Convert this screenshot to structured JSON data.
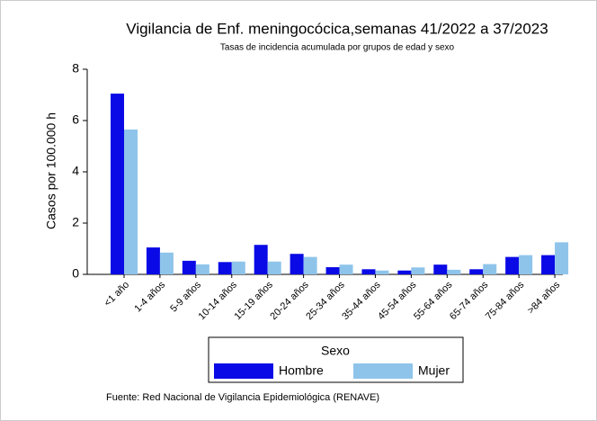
{
  "chart_data": {
    "type": "bar",
    "title": "Vigilancia de Enf. meningocócica,semanas 41/2022 a 37/2023",
    "subtitle": "Tasas de incidencia acumulada por grupos de edad y sexo",
    "y_label": "Casos por 100.000 h",
    "categories": [
      "<1 año",
      "1-4 años",
      "5-9 años",
      "10-14 años",
      "15-19 años",
      "20-24 años",
      "25-34 años",
      "35-44 años",
      "45-54 años",
      "55-64 años",
      "65-74 años",
      "75-84 años",
      ">84 años"
    ],
    "series": [
      {
        "name": "Hombre",
        "color": "#0a0ae6",
        "values": [
          7.05,
          1.05,
          0.53,
          0.48,
          1.15,
          0.8,
          0.28,
          0.2,
          0.15,
          0.38,
          0.2,
          0.68,
          0.75
        ]
      },
      {
        "name": "Mujer",
        "color": "#8ec4ea",
        "values": [
          5.65,
          0.85,
          0.39,
          0.5,
          0.5,
          0.68,
          0.38,
          0.15,
          0.27,
          0.18,
          0.4,
          0.75,
          1.25
        ]
      }
    ],
    "legend_title": "Sexo",
    "ylim": [
      0,
      8
    ],
    "yticks": [
      0,
      2,
      4,
      6,
      8
    ],
    "source": "Fuente: Red Nacional de Vigilancia Epidemiológica (RENAVE)"
  }
}
